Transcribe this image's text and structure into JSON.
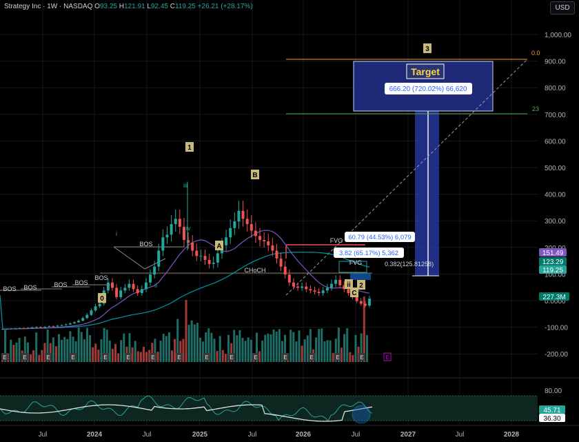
{
  "header": {
    "symbol": "Strategy Inc · 1W · NASDAQ",
    "open_label": "O",
    "open": "93.25",
    "high_label": "H",
    "high": "121.91",
    "low_label": "L",
    "low": "92.45",
    "close_label": "C",
    "close": "119.25",
    "change": "+26.21 (+28.17%)"
  },
  "currency_button": "USD",
  "colors": {
    "up": "#26a69a",
    "down": "#ef5350",
    "ma_purple": "#7e57c2",
    "ma_teal": "#0097a7",
    "fib_top": "#f0a030",
    "fib_green": "#4caf50",
    "target_box": "#1e2a78",
    "projection": "#4060d0"
  },
  "chart_data": {
    "type": "line",
    "x_axis": {
      "ticks": [
        "Jul",
        "2024",
        "Jul",
        "2025",
        "Jul",
        "2026",
        "Jul",
        "2027",
        "Jul",
        "2028"
      ]
    },
    "y_axis": {
      "ticks": [
        "1,000.00",
        "900.00",
        "800.00",
        "700.00",
        "600.00",
        "500.00",
        "400.00",
        "300.00",
        "200.00",
        "100.00",
        "0.0000",
        "-100.00",
        "-200.00"
      ]
    },
    "price_badges": [
      {
        "value": "151.49",
        "color": "#7e57c2"
      },
      {
        "value": "123.29",
        "color": "#00796b"
      },
      {
        "value": "119.25",
        "color": "#26a69a"
      }
    ],
    "volume_badge": "227.3M",
    "rsi_axis": {
      "ticks": [
        "80.00"
      ],
      "badges": [
        {
          "value": "45.71",
          "color": "#26a69a"
        },
        {
          "value": "36.30",
          "color": "#ffffff"
        }
      ]
    },
    "wave_labels": [
      "0",
      "1",
      "A",
      "B",
      "2",
      "3",
      "C",
      "ii"
    ],
    "sub_wave_labels": [
      "i",
      "iii",
      "iv",
      "ii"
    ],
    "structure_labels": [
      "BOS",
      "BOS",
      "BOS",
      "BOS",
      "BOS",
      "BOS",
      "CHoCH",
      "FVG",
      "FVG"
    ],
    "fib_labels": [
      "0.0",
      "23"
    ],
    "target_label": "Target",
    "measure_labels": [
      "666.20 (720.02%) 66,620",
      "60.79 (44.53%) 6,079",
      "3.82 (65.17%) 5,362",
      "0.382(125.81258)"
    ],
    "earnings_marker": "E",
    "price_series": [
      5,
      5,
      6,
      6,
      8,
      7,
      9,
      11,
      12,
      10,
      13,
      15,
      14,
      17,
      19,
      22,
      26,
      30,
      36,
      46,
      58,
      75,
      90,
      100,
      150,
      180,
      160,
      125,
      150,
      160,
      175,
      155,
      140,
      155,
      180,
      210,
      240,
      300,
      350,
      360,
      400,
      420,
      390,
      340,
      330,
      300,
      280,
      280,
      265,
      250,
      255,
      290,
      320,
      350,
      385,
      410,
      450,
      420,
      400,
      375,
      355,
      340,
      335,
      320,
      300,
      270,
      240,
      210,
      180,
      165,
      160,
      165,
      155,
      150,
      145,
      140,
      150,
      160,
      175,
      190,
      170,
      155,
      140,
      125,
      110,
      100,
      93,
      119
    ]
  }
}
